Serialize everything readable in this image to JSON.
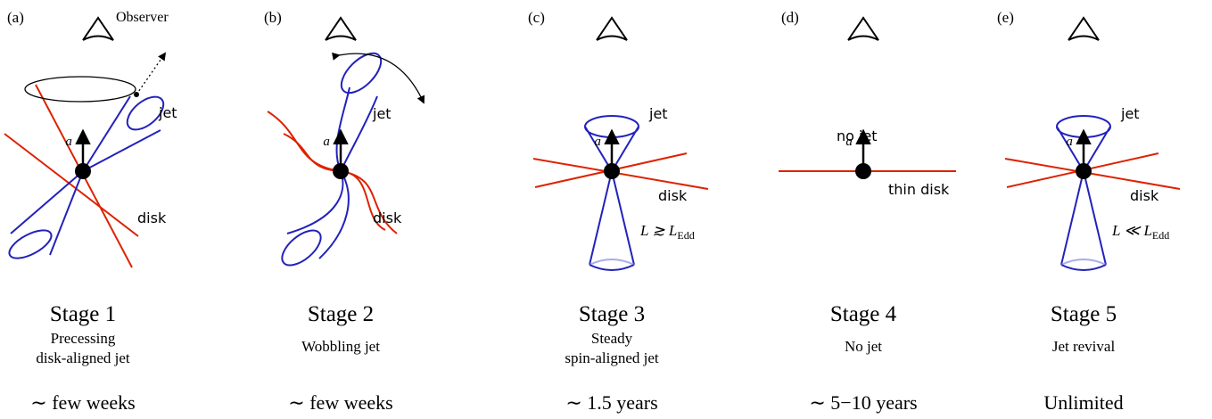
{
  "panels": [
    {
      "label": "(a)",
      "observer": "Observer",
      "vector": "a⃗",
      "jet": "jet",
      "disk": "disk",
      "stage": "Stage 1",
      "description": [
        "Precessing",
        "disk-aligned jet"
      ],
      "duration": "∼ few weeks"
    },
    {
      "label": "(b)",
      "vector": "a⃗",
      "jet": "jet",
      "disk": "disk",
      "stage": "Stage 2",
      "description": [
        "Wobbling jet"
      ],
      "duration": "∼ few weeks"
    },
    {
      "label": "(c)",
      "vector": "a⃗",
      "jet": "jet",
      "disk": "disk",
      "luminosity": {
        "main": "L ≳ L",
        "sub": "Edd"
      },
      "stage": "Stage 3",
      "description": [
        "Steady",
        "spin-aligned jet"
      ],
      "duration": "∼ 1.5 years"
    },
    {
      "label": "(d)",
      "vector": "a⃗",
      "jet": "no jet",
      "disk": "thin disk",
      "stage": "Stage 4",
      "description": [
        "No jet"
      ],
      "duration": "∼ 5−10 years"
    },
    {
      "label": "(e)",
      "vector": "a⃗",
      "jet": "jet",
      "disk": "disk",
      "luminosity": {
        "main": "L ≪ L",
        "sub": "Edd"
      },
      "stage": "Stage 5",
      "description": [
        "Jet revival"
      ],
      "duration": "Unlimited"
    }
  ]
}
